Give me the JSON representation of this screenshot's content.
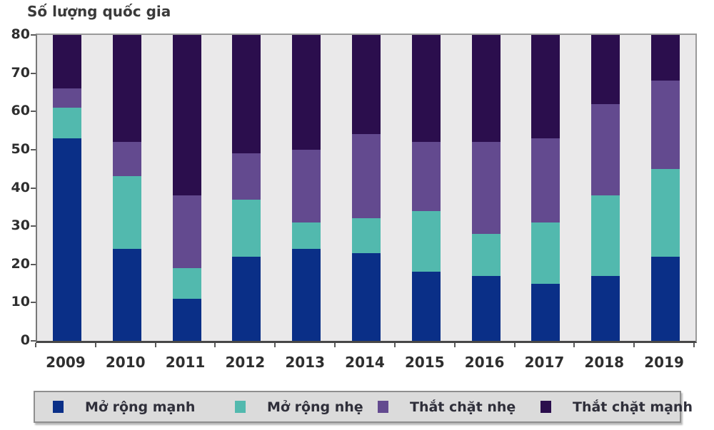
{
  "chart_data": {
    "type": "stacked-bar",
    "title": "Số lượng quốc gia",
    "categories": [
      "2009",
      "2010",
      "2011",
      "2012",
      "2013",
      "2014",
      "2015",
      "2016",
      "2017",
      "2018",
      "2019"
    ],
    "series": [
      {
        "name": "Mở rộng mạnh",
        "slug": "mo-rong-manh",
        "color": "#0a2f87",
        "values": [
          53,
          24,
          11,
          22,
          24,
          23,
          18,
          17,
          15,
          17,
          22
        ]
      },
      {
        "name": "Mở rộng nhẹ",
        "slug": "mo-rong-nhe",
        "color": "#52b9ae",
        "values": [
          8,
          19,
          8,
          15,
          7,
          9,
          16,
          11,
          16,
          21,
          23
        ]
      },
      {
        "name": "Thắt chặt nhẹ",
        "slug": "that-chat-nhe",
        "color": "#634a8f",
        "values": [
          5,
          9,
          19,
          12,
          19,
          22,
          18,
          24,
          22,
          24,
          23
        ]
      },
      {
        "name": "Thắt chặt mạnh",
        "slug": "that-chat-manh",
        "color": "#2b0e4d",
        "values": [
          14,
          28,
          42,
          31,
          30,
          26,
          28,
          28,
          27,
          18,
          12
        ]
      }
    ],
    "ylim": [
      0,
      80
    ],
    "ytick_step": 10,
    "grid": false,
    "legend_position": "bottom",
    "colors": {
      "plot_background": "#eae9ea",
      "page_background": "#ffffff",
      "legend_background": "#dbdbdb",
      "axis_line": "#474747",
      "text": "#2e2e2e"
    }
  }
}
